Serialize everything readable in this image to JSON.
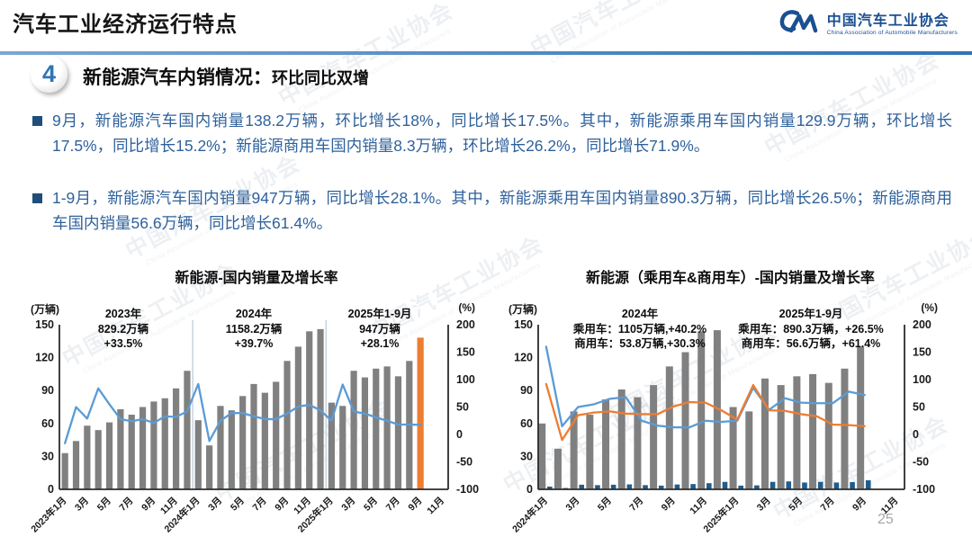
{
  "header": {
    "title": "汽车工业经济运行特点",
    "logo": {
      "name_cn": "中国汽车工业协会",
      "name_en": "China Association of Automobile Manufacturers"
    }
  },
  "section": {
    "number": "4",
    "title": "新能源汽车内销情况：",
    "subtitle": "环比同比双增"
  },
  "bullets": [
    {
      "text": "9月，新能源汽车国内销量138.2万辆，环比增长18%，同比增长17.5%。其中，新能源乘用车国内销量129.9万辆，环比增长17.5%，同比增长15.2%；新能源商用车国内销量8.3万辆，环比增长26.2%，同比增长71.9%。"
    },
    {
      "text": "1-9月，新能源汽车国内销量947万辆，同比增长28.1%。其中，新能源乘用车国内销量890.3万辆，同比增长26.5%；新能源商用车国内销量56.6万辆，同比增长61.4%。"
    }
  ],
  "watermark": {
    "text": "中国汽车工业协会",
    "subtext": "China Association of Automobile Manufacturers"
  },
  "colors": {
    "accent_blue": "#2E75B6",
    "bar_gray": "#808080",
    "bar_orange": "#ED7D31",
    "bar_navy": "#1F5C8C",
    "line_blue": "#5B9BD5",
    "line_orange": "#ED7D31",
    "body_text": "#2F619B"
  },
  "page": {
    "number": "25"
  },
  "chart_data": [
    {
      "type": "bar+line",
      "title": "新能源-国内销量及增长率",
      "left_axis": {
        "label": "(万辆)",
        "min": 0,
        "max": 150,
        "ticks": [
          0,
          30,
          60,
          90,
          120,
          150
        ]
      },
      "right_axis": {
        "label": "(%)",
        "min": -100,
        "max": 200,
        "ticks": [
          -100,
          -50,
          0,
          50,
          100,
          150,
          200
        ]
      },
      "x_tick_labels": [
        "2023年1月",
        "3月",
        "5月",
        "7月",
        "9月",
        "11月",
        "2024年1月",
        "3月",
        "5月",
        "7月",
        "9月",
        "11月",
        "2025年1月",
        "3月",
        "5月",
        "7月",
        "9月",
        "11月"
      ],
      "months": [
        "2023-01",
        "2023-02",
        "2023-03",
        "2023-04",
        "2023-05",
        "2023-06",
        "2023-07",
        "2023-08",
        "2023-09",
        "2023-10",
        "2023-11",
        "2023-12",
        "2024-01",
        "2024-02",
        "2024-03",
        "2024-04",
        "2024-05",
        "2024-06",
        "2024-07",
        "2024-08",
        "2024-09",
        "2024-10",
        "2024-11",
        "2024-12",
        "2025-01",
        "2025-02",
        "2025-03",
        "2025-04",
        "2025-05",
        "2025-06",
        "2025-07",
        "2025-08",
        "2025-09"
      ],
      "bars": {
        "name": "新能源国内销量(万辆)",
        "color": "#808080",
        "highlight_last": {
          "month": "2025-09",
          "color": "#ED7D31"
        },
        "values": [
          33,
          44,
          58,
          54,
          61,
          73,
          68,
          75,
          80,
          83,
          92,
          108,
          63,
          40,
          76,
          72,
          85,
          96,
          88,
          98,
          117,
          130,
          144,
          146,
          79,
          76,
          108,
          102,
          110,
          112,
          103,
          117,
          138.2
        ]
      },
      "line": {
        "name": "增长率(%)",
        "color": "#5B9BD5",
        "values": [
          -16,
          50,
          29,
          84,
          55,
          28,
          24,
          28,
          21,
          33,
          32,
          42,
          92,
          -12,
          25,
          39,
          39,
          33,
          28,
          28,
          38,
          51,
          54,
          44,
          25,
          91,
          42,
          38,
          31,
          25,
          18,
          18,
          17.5
        ]
      },
      "annotations": [
        {
          "lines": [
            "2023年",
            "829.2万辆",
            "+33.5%"
          ]
        },
        {
          "lines": [
            "2024年",
            "1158.2万辆",
            "+39.7%"
          ]
        },
        {
          "lines": [
            "2025年1-9月",
            "947万辆",
            "+28.1%"
          ]
        }
      ]
    },
    {
      "type": "bar+line",
      "title": "新能源（乘用车&商用车）-国内销量及增长率",
      "left_axis": {
        "label": "(万辆)",
        "min": 0,
        "max": 150,
        "ticks": [
          0,
          30,
          60,
          90,
          120,
          150
        ]
      },
      "right_axis": {
        "label": "(%)",
        "min": -100,
        "max": 200,
        "ticks": [
          -100,
          -50,
          0,
          50,
          100,
          150,
          200
        ]
      },
      "x_tick_labels": [
        "2024年1月",
        "3月",
        "5月",
        "7月",
        "9月",
        "11月",
        "2025年1月",
        "3月",
        "5月",
        "7月",
        "9月",
        "11月"
      ],
      "months": [
        "2024-01",
        "2024-02",
        "2024-03",
        "2024-04",
        "2024-05",
        "2024-06",
        "2024-07",
        "2024-08",
        "2024-09",
        "2024-10",
        "2024-11",
        "2024-12",
        "2025-01",
        "2025-02",
        "2025-03",
        "2025-04",
        "2025-05",
        "2025-06",
        "2025-07",
        "2025-08",
        "2025-09"
      ],
      "bar_series": [
        {
          "name": "乘用车国内销量(万辆)",
          "color": "#808080",
          "values": [
            60,
            37,
            71,
            68,
            82,
            91,
            84,
            95,
            112,
            125,
            144,
            145,
            75,
            71,
            101,
            95,
            103,
            105,
            97,
            110,
            129.9
          ]
        },
        {
          "name": "商用车国内销量(万辆)",
          "color": "#1F5C8C",
          "values": [
            2.5,
            1.2,
            4.2,
            3.8,
            4.2,
            4.5,
            3.8,
            3.4,
            4.4,
            4.8,
            5.6,
            6.8,
            3.4,
            3.6,
            6.8,
            7.2,
            6.2,
            6.8,
            6.2,
            6.6,
            8.3
          ]
        }
      ],
      "line_series": [
        {
          "name": "商用车增长率(%)",
          "color": "#5B9BD5",
          "values": [
            160,
            15,
            50,
            55,
            65,
            68,
            25,
            16,
            13,
            13,
            25,
            23,
            25,
            85,
            45,
            66,
            58,
            57,
            57,
            78,
            71.9
          ]
        },
        {
          "name": "乘用车增长率(%)",
          "color": "#ED7D31",
          "values": [
            92,
            -10,
            35,
            40,
            42,
            38,
            37,
            37,
            51,
            59,
            58,
            44,
            27,
            90,
            44,
            43,
            37,
            33,
            18,
            17,
            15.2
          ]
        }
      ],
      "annotations": [
        {
          "lines": [
            "2024年",
            "乘用车：1105万辆,+40.2%",
            "商用车：53.8万辆,+30.3%"
          ]
        },
        {
          "lines": [
            "2025年1-9月",
            "乘用车：890.3万辆，+26.5%",
            "商用车：56.6万辆，+61.4%"
          ]
        }
      ]
    }
  ]
}
